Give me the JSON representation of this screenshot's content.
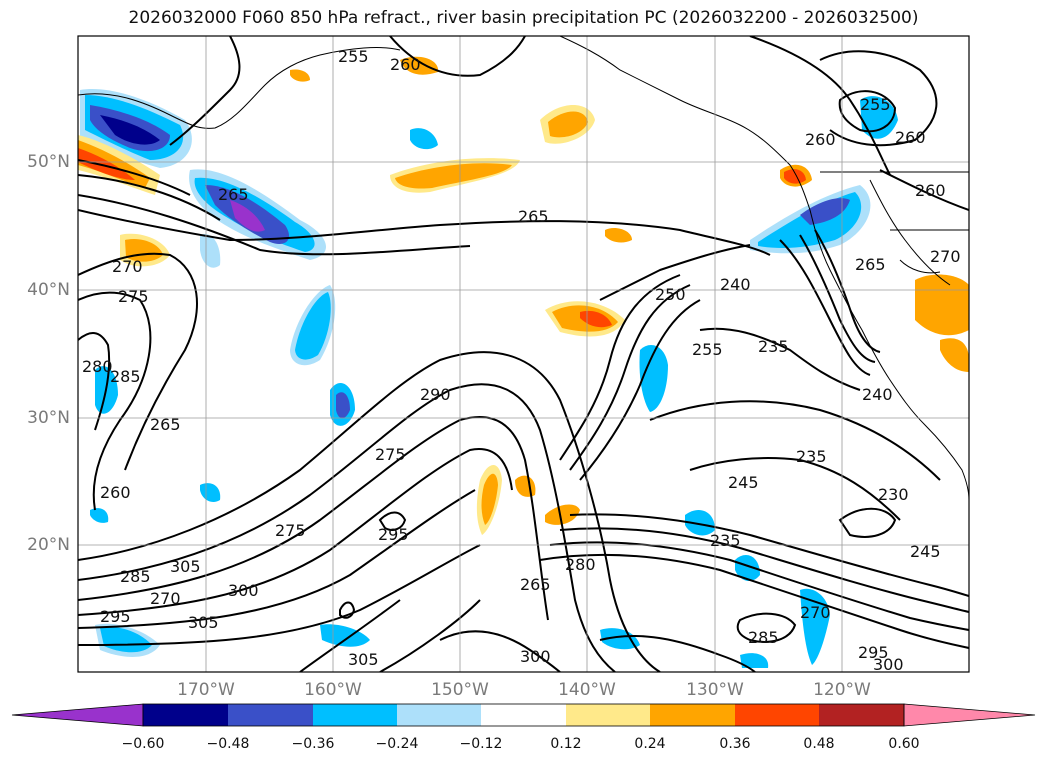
{
  "title": "2026032000 F060 850 hPa refract., river basin precipitation PC (2026032200 - 2026032500)",
  "lat_labels": [
    "50°N",
    "40°N",
    "30°N",
    "20°N"
  ],
  "lon_labels": [
    "170°W",
    "160°W",
    "150°W",
    "140°W",
    "130°W",
    "120°W"
  ],
  "contour_labels": [
    "255",
    "260",
    "265",
    "270",
    "275",
    "280",
    "285",
    "290",
    "295",
    "300",
    "305",
    "265",
    "260",
    "255",
    "260",
    "250",
    "255",
    "240",
    "235",
    "240",
    "235",
    "245",
    "230",
    "245",
    "235",
    "270",
    "285",
    "300",
    "295",
    "265",
    "280",
    "275",
    "260",
    "265",
    "270",
    "275",
    "285",
    "270",
    "265",
    "260",
    "295",
    "305",
    "300",
    "305"
  ],
  "colorbar": {
    "colors": [
      "#9932CC",
      "#00008B",
      "#3A50C8",
      "#00BFFF",
      "#ADE0FA",
      "#FFFFFF",
      "#FFE98A",
      "#FFA500",
      "#FF4500",
      "#B22222",
      "#FF88AA"
    ],
    "ticks": [
      "−0.60",
      "−0.48",
      "−0.36",
      "−0.24",
      "−0.12",
      "0.12",
      "0.24",
      "0.36",
      "0.48",
      "0.60"
    ]
  }
}
